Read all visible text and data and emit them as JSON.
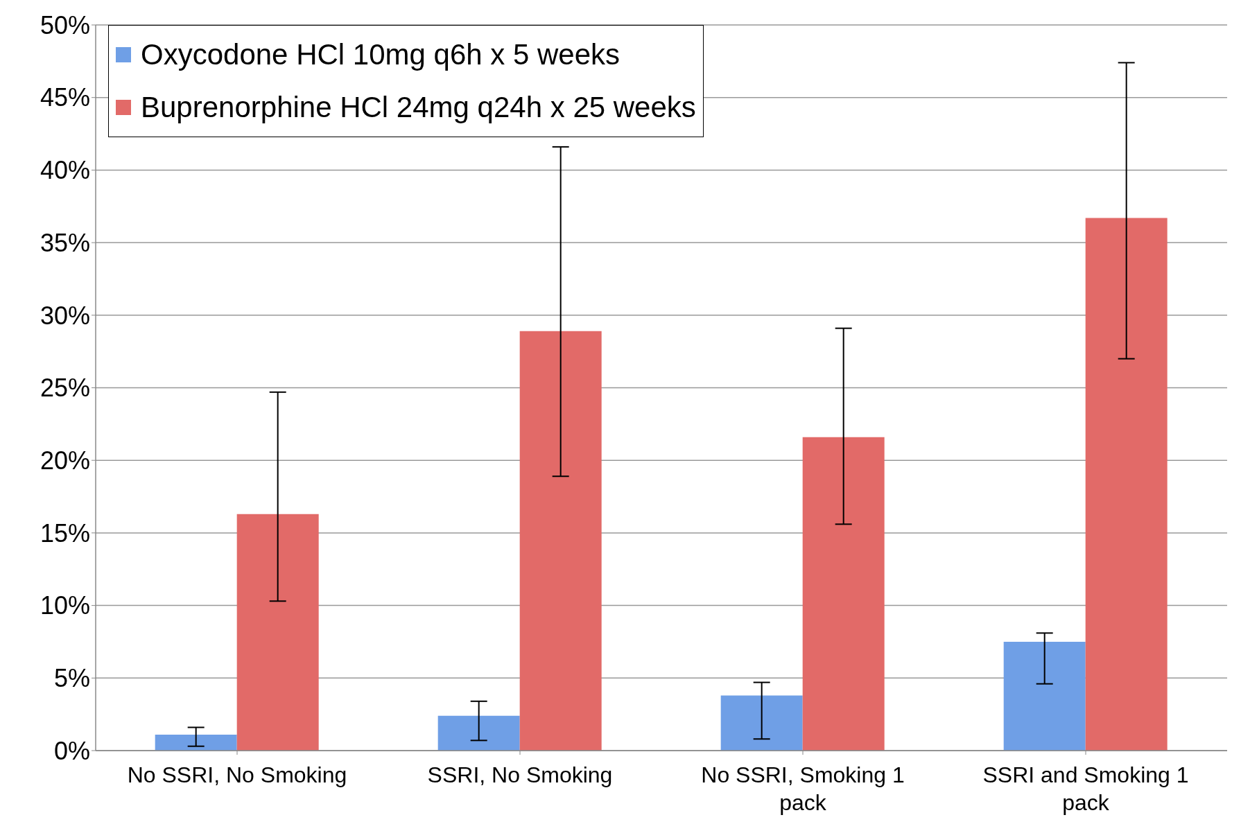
{
  "chart_data": {
    "type": "bar",
    "categories": [
      "No SSRI, No Smoking",
      "SSRI, No Smoking",
      "No SSRI, Smoking 1 pack",
      "SSRI and Smoking 1 pack"
    ],
    "series": [
      {
        "name": "Oxycodone HCl 10mg q6h x 5 weeks",
        "color": "#6f9fe6",
        "values": [
          1.1,
          2.4,
          3.8,
          7.5
        ],
        "errors": [
          [
            0.3,
            1.6
          ],
          [
            0.7,
            3.4
          ],
          [
            0.8,
            4.7
          ],
          [
            4.6,
            8.1
          ]
        ]
      },
      {
        "name": "Buprenorphine HCl 24mg q24h x 25 weeks",
        "color": "#e26a68",
        "values": [
          16.3,
          28.9,
          21.6,
          36.7
        ],
        "errors": [
          [
            10.3,
            24.7
          ],
          [
            18.9,
            41.6
          ],
          [
            15.6,
            29.1
          ],
          [
            27.0,
            47.4
          ]
        ]
      }
    ],
    "ylim": [
      0,
      50
    ],
    "yticks": [
      {
        "value": 0,
        "label": "0%"
      },
      {
        "value": 5,
        "label": "5%"
      },
      {
        "value": 10,
        "label": "10%"
      },
      {
        "value": 15,
        "label": "15%"
      },
      {
        "value": 20,
        "label": "20%"
      },
      {
        "value": 25,
        "label": "25%"
      },
      {
        "value": 30,
        "label": "30%"
      },
      {
        "value": 35,
        "label": "35%"
      },
      {
        "value": 40,
        "label": "40%"
      },
      {
        "value": 45,
        "label": "45%"
      },
      {
        "value": 50,
        "label": "50%"
      }
    ],
    "grid": "y",
    "legend": "top left"
  }
}
